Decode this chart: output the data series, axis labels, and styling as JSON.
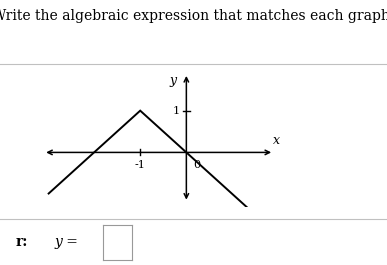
{
  "title": "Write the algebraic expression that matches each graph:",
  "title_fontsize": 10,
  "xlabel": "x",
  "ylabel": "y",
  "tick_label_neg1": "-1",
  "tick_label_0": "0",
  "tick_label_1": "1",
  "answer_label": "r:",
  "answer_y_eq": "y =",
  "line_color": "#000000",
  "background_color": "#ffffff",
  "axis_color": "#000000",
  "font_color": "#000000",
  "sep_color": "#c0c0c0",
  "xlim": [
    -3.2,
    2.0
  ],
  "ylim": [
    -1.3,
    2.0
  ],
  "x_left_ext": -3.0,
  "x_right_ext": 1.5,
  "peak_x": -1,
  "peak_y": 1
}
